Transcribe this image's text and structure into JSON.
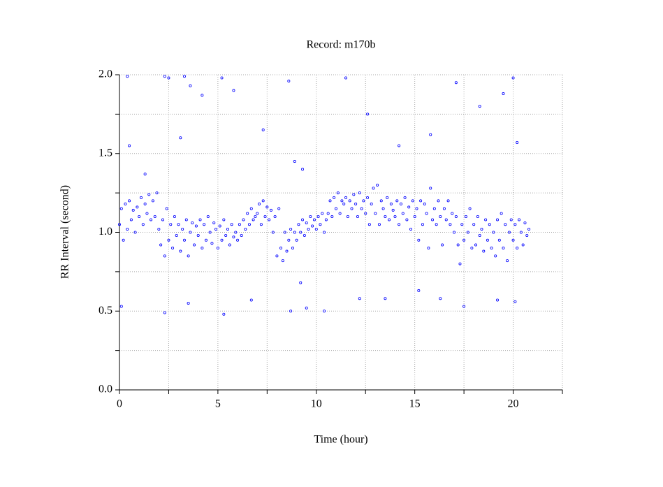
{
  "chart_data": {
    "type": "scatter",
    "title": "Record:  m170b",
    "x_label": "Time (hour)",
    "y_label": "RR Interval (second)",
    "color": "#0000ff",
    "grid": true,
    "xlim": [
      0,
      22.5
    ],
    "ylim": [
      0,
      2
    ],
    "xticks": [
      0,
      5,
      10,
      15,
      20
    ],
    "xminorticks": [
      2.5,
      7.5,
      12.5,
      17.5,
      22.5
    ],
    "yticks": [
      {
        "value": 0,
        "label": "0.0"
      },
      {
        "value": 0.5,
        "label": "0.5"
      },
      {
        "value": 1,
        "label": "1.0"
      },
      {
        "value": 1.5,
        "label": "1.5"
      },
      {
        "value": 2,
        "label": "2.0"
      }
    ],
    "yminorticks": [
      0.25,
      0.75,
      1.25,
      1.75
    ],
    "x": [
      0,
      0.1,
      0.2,
      0.3,
      0.4,
      0.5,
      0.6,
      0.7,
      0.8,
      0.9,
      1,
      1.1,
      1.2,
      1.3,
      1.4,
      1.5,
      1.6,
      1.7,
      1.8,
      1.9,
      2,
      2.1,
      2.2,
      2.3,
      2.4,
      2.5,
      2.6,
      2.7,
      2.8,
      2.9,
      3,
      3.1,
      3.2,
      3.3,
      3.4,
      3.5,
      3.6,
      3.7,
      3.8,
      3.9,
      4,
      4.1,
      4.2,
      4.3,
      4.4,
      4.5,
      4.6,
      4.7,
      4.8,
      4.9,
      5,
      5.1,
      5.2,
      5.3,
      5.4,
      5.5,
      5.6,
      5.7,
      5.8,
      5.9,
      6,
      6.1,
      6.2,
      6.3,
      6.4,
      6.5,
      6.6,
      6.7,
      6.8,
      6.9,
      7,
      7.1,
      7.2,
      7.3,
      7.4,
      7.5,
      7.6,
      7.7,
      7.8,
      7.9,
      8,
      8.1,
      8.2,
      8.3,
      8.4,
      8.5,
      8.6,
      8.7,
      8.8,
      8.9,
      9,
      9.1,
      9.2,
      9.3,
      9.4,
      9.5,
      9.6,
      9.7,
      9.8,
      9.9,
      10,
      10.1,
      10.2,
      10.3,
      10.4,
      10.5,
      10.6,
      10.7,
      10.8,
      10.9,
      11,
      11.1,
      11.2,
      11.3,
      11.4,
      11.5,
      11.6,
      11.7,
      11.8,
      11.9,
      12,
      12.1,
      12.2,
      12.3,
      12.4,
      12.5,
      12.6,
      12.7,
      12.8,
      12.9,
      13,
      13.1,
      13.2,
      13.3,
      13.4,
      13.5,
      13.6,
      13.7,
      13.8,
      13.9,
      14,
      14.1,
      14.2,
      14.3,
      14.4,
      14.5,
      14.6,
      14.7,
      14.8,
      14.9,
      15,
      15.1,
      15.2,
      15.3,
      15.4,
      15.5,
      15.6,
      15.7,
      15.8,
      15.9,
      16,
      16.1,
      16.2,
      16.3,
      16.4,
      16.5,
      16.6,
      16.7,
      16.8,
      16.9,
      17,
      17.1,
      17.2,
      17.3,
      17.4,
      17.5,
      17.6,
      17.7,
      17.8,
      17.9,
      18,
      18.1,
      18.2,
      18.3,
      18.4,
      18.5,
      18.6,
      18.7,
      18.8,
      18.9,
      19,
      19.1,
      19.2,
      19.3,
      19.4,
      19.5,
      19.6,
      19.7,
      19.8,
      19.9,
      20,
      20.1,
      20.2,
      20.3,
      20.4,
      20.5,
      20.6,
      20.7,
      20.8,
      0.4,
      0.5,
      1.3,
      2.3,
      2.5,
      3.3,
      3.6,
      4.2,
      5.2,
      5.8,
      3.1,
      7.3,
      8.6,
      8.9,
      9.3,
      11.5,
      12.6,
      14.2,
      15.8,
      17.1,
      18.3,
      19.5,
      20,
      20.2,
      0.1,
      2.3,
      3.5,
      5.3,
      6.7,
      8.7,
      9.5,
      10.4,
      12.2,
      13.5,
      15.2,
      16.3,
      17.5,
      19.2,
      20.1,
      9.2
    ],
    "values": [
      1.05,
      1.15,
      0.95,
      1.18,
      1.02,
      1.2,
      1.08,
      1.14,
      1,
      1.16,
      1.1,
      1.22,
      1.05,
      1.18,
      1.12,
      1.24,
      1.08,
      1.2,
      1.1,
      1.25,
      1.02,
      0.92,
      1.08,
      0.85,
      1.15,
      0.95,
      1.05,
      0.9,
      1.1,
      0.98,
      1.05,
      0.88,
      1.02,
      0.95,
      1.08,
      0.85,
      1,
      1.06,
      0.92,
      1.04,
      0.98,
      1.08,
      0.9,
      1.05,
      0.95,
      1.1,
      1,
      0.93,
      1.06,
      1.02,
      0.9,
      1.04,
      0.95,
      1.08,
      0.98,
      1.02,
      0.92,
      1.05,
      0.97,
      1,
      0.95,
      1.05,
      0.98,
      1.08,
      1.02,
      1.12,
      1.05,
      1.15,
      1.08,
      1.1,
      1.12,
      1.18,
      1.05,
      1.2,
      1.1,
      1.16,
      1.08,
      1.14,
      1,
      1.1,
      0.85,
      1.15,
      0.9,
      0.82,
      1,
      0.88,
      0.95,
      1.02,
      0.9,
      1,
      0.95,
      1.05,
      1,
      1.08,
      0.98,
      1.06,
      1.02,
      1.1,
      1.04,
      1.08,
      1.02,
      1.1,
      1.05,
      1.12,
      1,
      1.08,
      1.12,
      1.2,
      1.1,
      1.22,
      1.15,
      1.25,
      1.12,
      1.2,
      1.18,
      1.22,
      1.1,
      1.2,
      1.15,
      1.24,
      1.18,
      1.1,
      1.25,
      1.15,
      1.2,
      1.12,
      1.22,
      1.05,
      1.18,
      1.28,
      1.12,
      1.3,
      1.05,
      1.2,
      1.15,
      1.1,
      1.22,
      1.08,
      1.18,
      1.14,
      1.1,
      1.2,
      1.05,
      1.18,
      1.12,
      1.22,
      1.08,
      1.16,
      1.02,
      1.2,
      1.1,
      1.15,
      0.95,
      1.2,
      1.05,
      1.18,
      1.12,
      0.9,
      1.28,
      1.08,
      1.15,
      1.05,
      1.2,
      1.1,
      0.92,
      1.15,
      1.08,
      1.2,
      1.05,
      1.12,
      1,
      1.1,
      0.92,
      0.8,
      1.05,
      0.95,
      1.1,
      1,
      1.15,
      0.9,
      1.05,
      0.92,
      1.1,
      0.98,
      1.02,
      0.88,
      1.08,
      0.95,
      1.05,
      0.9,
      1,
      0.85,
      1.08,
      0.95,
      1.12,
      0.9,
      1.05,
      0.82,
      1,
      1.08,
      0.95,
      1.05,
      0.9,
      1.08,
      1,
      0.92,
      1.06,
      0.98,
      1.02,
      1.99,
      1.55,
      1.37,
      1.99,
      1.98,
      1.99,
      1.93,
      1.87,
      1.98,
      1.9,
      1.6,
      1.65,
      1.96,
      1.45,
      1.4,
      1.98,
      1.75,
      1.55,
      1.62,
      1.95,
      1.8,
      1.88,
      1.98,
      1.57,
      0.53,
      0.49,
      0.55,
      0.48,
      0.57,
      0.5,
      0.52,
      0.5,
      0.58,
      0.58,
      0.63,
      0.58,
      0.53,
      0.57,
      0.56,
      0.68
    ]
  }
}
